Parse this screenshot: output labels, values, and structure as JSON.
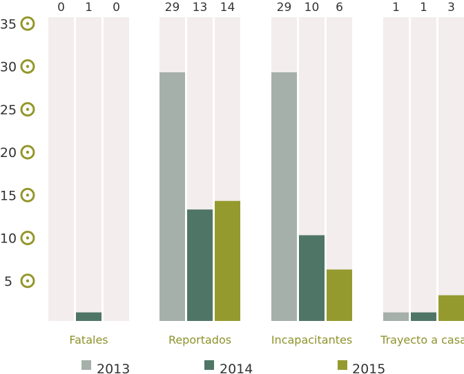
{
  "chart_data": {
    "type": "bar",
    "categories": [
      "Fatales",
      "Reportados",
      "Incapacitantes",
      "Trayecto a casa"
    ],
    "series": [
      {
        "name": "2013",
        "values": [
          0,
          29,
          29,
          1
        ]
      },
      {
        "name": "2014",
        "values": [
          1,
          13,
          10,
          1
        ]
      },
      {
        "name": "2015",
        "values": [
          0,
          14,
          6,
          3
        ]
      }
    ],
    "value_labels": [
      [
        "0",
        "1",
        "0"
      ],
      [
        "29",
        "13",
        "14"
      ],
      [
        "29",
        "10",
        "6"
      ],
      [
        "1",
        "1",
        "3"
      ]
    ],
    "yticks": [
      "5",
      "10",
      "15",
      "20",
      "25",
      "30",
      "35"
    ],
    "ytick_values": [
      5,
      10,
      15,
      20,
      25,
      30,
      35
    ],
    "ylim": [
      0,
      35
    ],
    "legend_position": "bottom",
    "grid": false,
    "colors": {
      "series": [
        "#a5b0aa",
        "#4f7566",
        "#959a2e"
      ],
      "background_column": "#f3eded",
      "tick_marker": "#939629",
      "category_label": "#8c922a"
    }
  }
}
